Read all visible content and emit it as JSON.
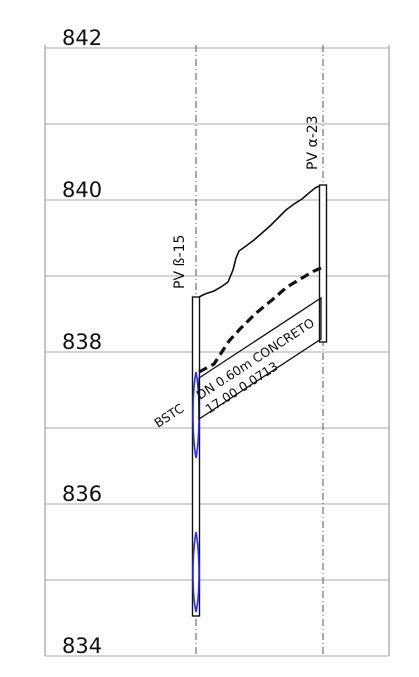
{
  "elevations": [
    {
      "value": "842",
      "level": 842
    },
    {
      "value": "840",
      "level": 840
    },
    {
      "value": "838",
      "level": 838
    },
    {
      "value": "836",
      "level": 836
    },
    {
      "value": "834",
      "level": 834
    }
  ],
  "wells": [
    {
      "name": "PV ß-15",
      "top_level": 839.05,
      "bottom_level": 834.85
    },
    {
      "name": "PV α-23",
      "top_level": 840.25,
      "bottom_level": 838.2
    }
  ],
  "pipe": {
    "prefix": "BSTC",
    "line1": "DN 0.60m  CONCRETO",
    "line2": "17.00  0.0713"
  },
  "colors": {
    "line": "#111111",
    "grid": "#aaaaaa",
    "water": "#2b2bff"
  }
}
